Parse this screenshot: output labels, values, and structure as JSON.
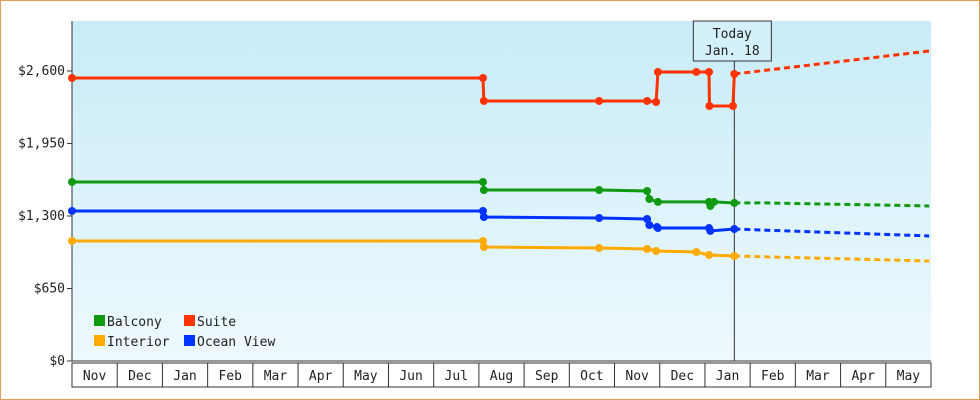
{
  "chart_data": {
    "type": "line",
    "xlim": [
      0,
      19
    ],
    "ylim": [
      0,
      3048
    ],
    "xticks": [
      {
        "value": 0.5,
        "label": "Nov"
      },
      {
        "value": 1.5,
        "label": "Dec"
      },
      {
        "value": 2.5,
        "label": "Jan"
      },
      {
        "value": 3.5,
        "label": "Feb"
      },
      {
        "value": 4.5,
        "label": "Mar"
      },
      {
        "value": 5.5,
        "label": "Apr"
      },
      {
        "value": 6.5,
        "label": "May"
      },
      {
        "value": 7.5,
        "label": "Jun"
      },
      {
        "value": 8.5,
        "label": "Jul"
      },
      {
        "value": 9.5,
        "label": "Aug"
      },
      {
        "value": 10.5,
        "label": "Sep"
      },
      {
        "value": 11.5,
        "label": "Oct"
      },
      {
        "value": 12.5,
        "label": "Nov"
      },
      {
        "value": 13.5,
        "label": "Dec"
      },
      {
        "value": 14.5,
        "label": "Jan"
      },
      {
        "value": 15.5,
        "label": "Feb"
      },
      {
        "value": 16.5,
        "label": "Mar"
      },
      {
        "value": 17.5,
        "label": "Apr"
      },
      {
        "value": 18.5,
        "label": "May"
      }
    ],
    "yticks": [
      {
        "value": 0,
        "label": "$0"
      },
      {
        "value": 650,
        "label": "$650"
      },
      {
        "value": 1300,
        "label": "$1,300"
      },
      {
        "value": 1950,
        "label": "$1,950"
      },
      {
        "value": 2600,
        "label": "$2,600"
      }
    ],
    "legend": "bottom-left",
    "annotation": {
      "x": 14.65,
      "lines": [
        "Today",
        "Jan. 18"
      ]
    },
    "series": [
      {
        "name": "Balcony",
        "color": "#119911",
        "x": [
          0,
          9.09,
          9.11,
          11.66,
          12.72,
          12.77,
          12.96,
          14.09,
          14.12,
          14.2,
          14.65
        ],
        "values": [
          1605,
          1605,
          1533,
          1533,
          1524,
          1452,
          1426,
          1426,
          1390,
          1426,
          1417
        ],
        "forecast_x": [
          14.65,
          15.35,
          18.96
        ],
        "forecast_values": [
          1417,
          1417,
          1390
        ]
      },
      {
        "name": "Suite",
        "color": "#ff3300",
        "x": [
          0,
          9.09,
          9.11,
          11.66,
          12.72,
          12.92,
          12.96,
          13.81,
          14.09,
          14.1,
          14.62,
          14.65
        ],
        "values": [
          2537,
          2537,
          2331,
          2331,
          2331,
          2322,
          2591,
          2591,
          2591,
          2286,
          2286,
          2573
        ],
        "forecast_x": [
          14.65,
          18.96
        ],
        "forecast_values": [
          2573,
          2779
        ]
      },
      {
        "name": "Interior",
        "color": "#ffaa00",
        "x": [
          0,
          9.09,
          9.11,
          11.66,
          12.72,
          12.92,
          13.81,
          14.09,
          14.65
        ],
        "values": [
          1076,
          1076,
          1022,
          1013,
          1004,
          986,
          977,
          950,
          941
        ],
        "forecast_x": [
          14.65,
          18.96
        ],
        "forecast_values": [
          941,
          897
        ]
      },
      {
        "name": "Ocean View",
        "color": "#0033ff",
        "x": [
          0,
          9.09,
          9.11,
          11.66,
          12.72,
          12.77,
          12.94,
          12.96,
          14.09,
          14.12,
          14.65
        ],
        "values": [
          1345,
          1345,
          1291,
          1282,
          1273,
          1219,
          1201,
          1192,
          1192,
          1166,
          1183
        ],
        "forecast_x": [
          14.65,
          18.96
        ],
        "forecast_values": [
          1183,
          1121
        ]
      }
    ]
  }
}
